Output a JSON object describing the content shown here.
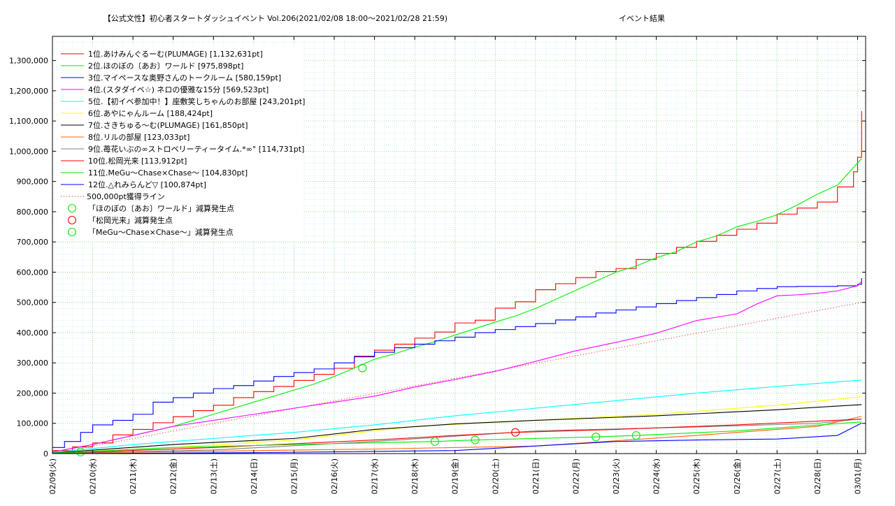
{
  "chart_data": {
    "type": "line",
    "title": "【公式文性】初心者スタートダッシュイベント Vol.206(2021/02/08 18:00～2021/02/28 21:59)",
    "title_suffix": "イベント結果",
    "xlabel": "",
    "ylabel": "",
    "x_ticks": [
      "02/09(火)",
      "02/10(水)",
      "02/11(木)",
      "02/12(金)",
      "02/13(土)",
      "02/14(日)",
      "02/15(月)",
      "02/16(火)",
      "02/17(水)",
      "02/18(木)",
      "02/19(金)",
      "02/20(土)",
      "02/21(日)",
      "02/22(月)",
      "02/23(火)",
      "02/24(水)",
      "02/25(木)",
      "02/26(金)",
      "02/27(土)",
      "02/28(日)",
      "03/01(月)"
    ],
    "x_range_days": [
      0,
      20.2
    ],
    "y_ticks": [
      "0",
      "100,000",
      "200,000",
      "300,000",
      "400,000",
      "500,000",
      "600,000",
      "700,000",
      "800,000",
      "900,000",
      "1,000,000",
      "1,100,000",
      "1,200,000",
      "1,300,000"
    ],
    "ylim": [
      0,
      1380000
    ],
    "grid": true,
    "legend_position": "top-left",
    "series": [
      {
        "name": "1位.あけみんぐるーむ(PLUMAGE) [1,132,631pt]",
        "color": "#ff0000",
        "step": true,
        "x": [
          0,
          0.5,
          1,
          1.5,
          2,
          2.5,
          3,
          3.5,
          4,
          4.5,
          5,
          5.5,
          6,
          6.5,
          7,
          7.5,
          8,
          8.5,
          9,
          9.5,
          10,
          10.5,
          11,
          11.5,
          12,
          12.5,
          13,
          13.5,
          14,
          14.5,
          15,
          15.5,
          16,
          16.5,
          17,
          17.5,
          18,
          18.5,
          19,
          19.5,
          19.9,
          20.0,
          20.1
        ],
        "y": [
          10000,
          22000,
          35000,
          62000,
          80000,
          102000,
          122000,
          142000,
          160000,
          185000,
          205000,
          222000,
          242000,
          262000,
          282000,
          322000,
          342000,
          362000,
          382000,
          402000,
          432000,
          441000,
          481000,
          502000,
          542000,
          562000,
          582000,
          602000,
          612000,
          642000,
          662000,
          682000,
          702000,
          722000,
          742000,
          762000,
          792000,
          812000,
          832000,
          882000,
          932000,
          980000,
          1132631
        ]
      },
      {
        "name": "2位.ほのぼの〔あお〕ワールド [975,898pt]",
        "color": "#00ee00",
        "step": false,
        "x": [
          0,
          1,
          2,
          3,
          4,
          5,
          6,
          6.5,
          7,
          7.5,
          8,
          8.5,
          9,
          9.5,
          10,
          10.5,
          11,
          11.5,
          12,
          12.5,
          13,
          13.5,
          14,
          14.5,
          15,
          15.5,
          16,
          16.5,
          17,
          17.5,
          18,
          18.5,
          19,
          19.5,
          20.1
        ],
        "y": [
          5000,
          30000,
          60000,
          90000,
          130000,
          170000,
          210000,
          230000,
          255000,
          283000,
          312000,
          330000,
          352000,
          370000,
          392000,
          413000,
          435000,
          455000,
          480000,
          510000,
          540000,
          570000,
          600000,
          620000,
          648000,
          668000,
          700000,
          720000,
          750000,
          768000,
          790000,
          822000,
          858000,
          888000,
          975898
        ]
      },
      {
        "name": "3位.マイペースな奥野さんのトークルーム [580,159pt]",
        "color": "#0000ff",
        "step": true,
        "x": [
          0,
          0.3,
          0.7,
          1,
          1.5,
          2,
          2.5,
          3,
          3.5,
          4,
          4.5,
          5,
          5.5,
          6,
          6.5,
          7,
          7.5,
          8,
          8.5,
          9,
          9.5,
          10,
          10.5,
          11,
          11.5,
          12,
          12.5,
          13,
          13.5,
          14,
          14.5,
          15,
          15.5,
          16,
          16.5,
          17,
          17.5,
          18,
          18.5,
          19,
          19.5,
          20,
          20.1
        ],
        "y": [
          20000,
          40000,
          70000,
          95000,
          110000,
          130000,
          170000,
          185000,
          200000,
          215000,
          225000,
          240000,
          255000,
          268000,
          280000,
          300000,
          320000,
          335000,
          350000,
          362000,
          373000,
          385000,
          400000,
          410000,
          420000,
          430000,
          442000,
          452000,
          465000,
          475000,
          485000,
          496000,
          506000,
          516000,
          526000,
          538000,
          546000,
          552000,
          553000,
          553000,
          555000,
          560000,
          580159
        ]
      },
      {
        "name": "4位.(スタダイベ☆) ネロの優雅な15分 [569,523pt]",
        "color": "#ff00ff",
        "step": false,
        "x": [
          0,
          1,
          2,
          3,
          4,
          5,
          6,
          7,
          8,
          9,
          10,
          11,
          12,
          13,
          14,
          15,
          16,
          17,
          17.5,
          18,
          18.5,
          19,
          19.5,
          20,
          20.1
        ],
        "y": [
          5000,
          30000,
          60000,
          90000,
          110000,
          130000,
          150000,
          170000,
          190000,
          220000,
          245000,
          272000,
          305000,
          340000,
          368000,
          398000,
          440000,
          462000,
          495000,
          522000,
          525000,
          530000,
          538000,
          555000,
          569523
        ]
      },
      {
        "name": "5位.【初イベ参加中！】座敷笑しちゃんのお部屋 [243,201pt]",
        "color": "#00ffff",
        "step": false,
        "x": [
          0,
          2,
          4,
          6,
          8,
          10,
          12,
          14,
          16,
          18,
          20.1
        ],
        "y": [
          3000,
          30000,
          50000,
          70000,
          95000,
          125000,
          150000,
          175000,
          200000,
          222000,
          243201
        ]
      },
      {
        "name": "6位.あやにゃんルーム [188,424pt]",
        "color": "#ffff00",
        "step": false,
        "x": [
          0,
          3,
          6,
          9,
          12,
          15,
          18,
          20.1
        ],
        "y": [
          2000,
          20000,
          45000,
          90000,
          110000,
          130000,
          160000,
          188424
        ]
      },
      {
        "name": "7位.さきちゅる〜む(PLUMAGE) [161,850pt]",
        "color": "#000000",
        "step": false,
        "x": [
          0,
          3,
          6,
          8,
          10,
          12,
          15,
          18,
          20.1
        ],
        "y": [
          2000,
          30000,
          50000,
          80000,
          98000,
          110000,
          125000,
          145000,
          161850
        ]
      },
      {
        "name": "8位.リルの部屋 [123,033pt]",
        "color": "#ff6600",
        "step": false,
        "x": [
          0,
          4,
          8,
          12,
          16,
          19,
          20.1
        ],
        "y": [
          1000,
          8000,
          15000,
          25000,
          60000,
          90000,
          123033
        ]
      },
      {
        "name": "9位.苺花いぶの∞ストロベリーティータイム.*∞° [114,731pt]",
        "color": "#808080",
        "step": false,
        "x": [
          0,
          4,
          8,
          12,
          16,
          19,
          20.1
        ],
        "y": [
          1000,
          12000,
          40000,
          75000,
          88000,
          100000,
          114731
        ]
      },
      {
        "name": "10位.松岡光来 [113,912pt]",
        "color": "#ff0000",
        "step": false,
        "x": [
          0,
          4,
          8,
          10,
          11.5,
          14,
          17,
          20.1
        ],
        "y": [
          1000,
          20000,
          45000,
          60000,
          70000,
          80000,
          95000,
          113912
        ]
      },
      {
        "name": "11位.MeGu〜Chase×Chase〜 [104,830pt]",
        "color": "#00ee00",
        "step": false,
        "x": [
          0,
          3,
          6,
          9.5,
          10.5,
          13.5,
          14.5,
          17,
          20.1
        ],
        "y": [
          1000,
          20000,
          30000,
          40000,
          45000,
          55000,
          60000,
          75000,
          104830
        ]
      },
      {
        "name": "12位.△れみらんど▽ [100,874pt]",
        "color": "#0000ff",
        "step": false,
        "x": [
          0,
          5,
          10,
          12,
          14,
          16,
          18,
          19.5,
          20.1
        ],
        "y": [
          0,
          3000,
          10000,
          25000,
          40000,
          45000,
          48000,
          60000,
          100874
        ]
      }
    ],
    "reference_line": {
      "name": "500,000pt獲得ライン",
      "color": "#ff0000",
      "style": "dotted",
      "x": [
        0,
        20.1
      ],
      "y": [
        0,
        500000
      ]
    },
    "markers": [
      {
        "name": "「ほのぼの〔あお〕ワールド」減算発生点",
        "color": "#00ee00",
        "points": [
          {
            "x": 0.7,
            "y": 5000
          },
          {
            "x": 7.7,
            "y": 283000
          },
          {
            "x": 9.5,
            "y": 40000
          },
          {
            "x": 10.5,
            "y": 45000
          },
          {
            "x": 13.5,
            "y": 55000
          },
          {
            "x": 14.5,
            "y": 60000
          }
        ]
      },
      {
        "name": "「松岡光来」減算発生点",
        "color": "#ff0000",
        "points": [
          {
            "x": 11.5,
            "y": 70000
          }
        ]
      },
      {
        "name": "「MeGu〜Chase×Chase〜」減算発生点",
        "color": "#00ee00",
        "points": []
      }
    ]
  }
}
